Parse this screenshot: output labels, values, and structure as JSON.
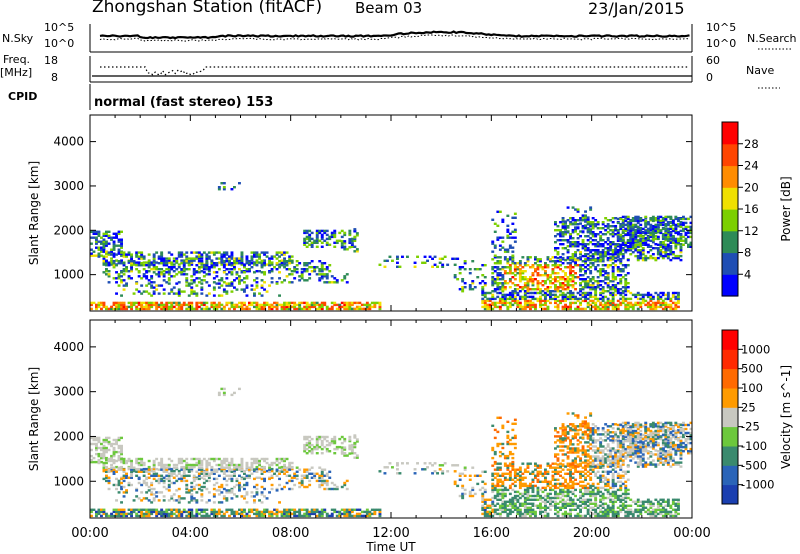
{
  "header": {
    "title": "Zhongshan Station (fitACF)",
    "beam": "Beam 03",
    "date": "23/Jan/2015"
  },
  "top_panel": {
    "nsky_label": "N.Sky",
    "nsky_ticks": [
      "10^5",
      "10^0"
    ],
    "nsearch_label": "N.Search",
    "nsearch_ticks": [
      "10^5",
      "10^0"
    ],
    "freq_label": [
      "Freq.",
      "[MHz]"
    ],
    "freq_ticks": [
      "18",
      "8"
    ],
    "nave_label": "Nave",
    "nave_ticks": [
      "60",
      "0"
    ],
    "cpid_label": "CPID",
    "cpid_value": "normal (fast stereo) 153"
  },
  "chart_data": [
    {
      "type": "heatmap",
      "ylabel": "Slant Range [km]",
      "xlabel": "Time UT",
      "x_ticks": [
        "00:00",
        "04:00",
        "08:00",
        "12:00",
        "16:00",
        "20:00",
        "00:00"
      ],
      "y_ticks": [
        1000,
        2000,
        3000,
        4000
      ],
      "xlim": [
        0,
        24
      ],
      "ylim": [
        180,
        4600
      ],
      "colorbar": {
        "label": "Power [dB]",
        "ticks": [
          "4",
          "8",
          "12",
          "16",
          "20",
          "24",
          "28"
        ],
        "colors": [
          "#0000ff",
          "#1f4eb4",
          "#2e8b57",
          "#7cd000",
          "#f0e000",
          "#ff8c00",
          "#ff4500",
          "#ff0000"
        ]
      }
    },
    {
      "type": "heatmap",
      "ylabel": "Slant Range [km]",
      "xlabel": "Time UT",
      "x_ticks": [
        "00:00",
        "04:00",
        "08:00",
        "12:00",
        "16:00",
        "20:00",
        "00:00"
      ],
      "y_ticks": [
        1000,
        2000,
        3000,
        4000
      ],
      "xlim": [
        0,
        24
      ],
      "ylim": [
        180,
        4600
      ],
      "colorbar": {
        "label": "Velocity [m s^-1]",
        "ticks": [
          "1000",
          "500",
          "100",
          "25",
          "-25",
          "-100",
          "-500",
          "-1000"
        ],
        "colors": [
          "#1b3fb0",
          "#2a64b8",
          "#3a8a6e",
          "#6cc83c",
          "#c8c8c0",
          "#ff9b00",
          "#ff6a00",
          "#ff2a00",
          "#ff0000"
        ]
      }
    }
  ]
}
